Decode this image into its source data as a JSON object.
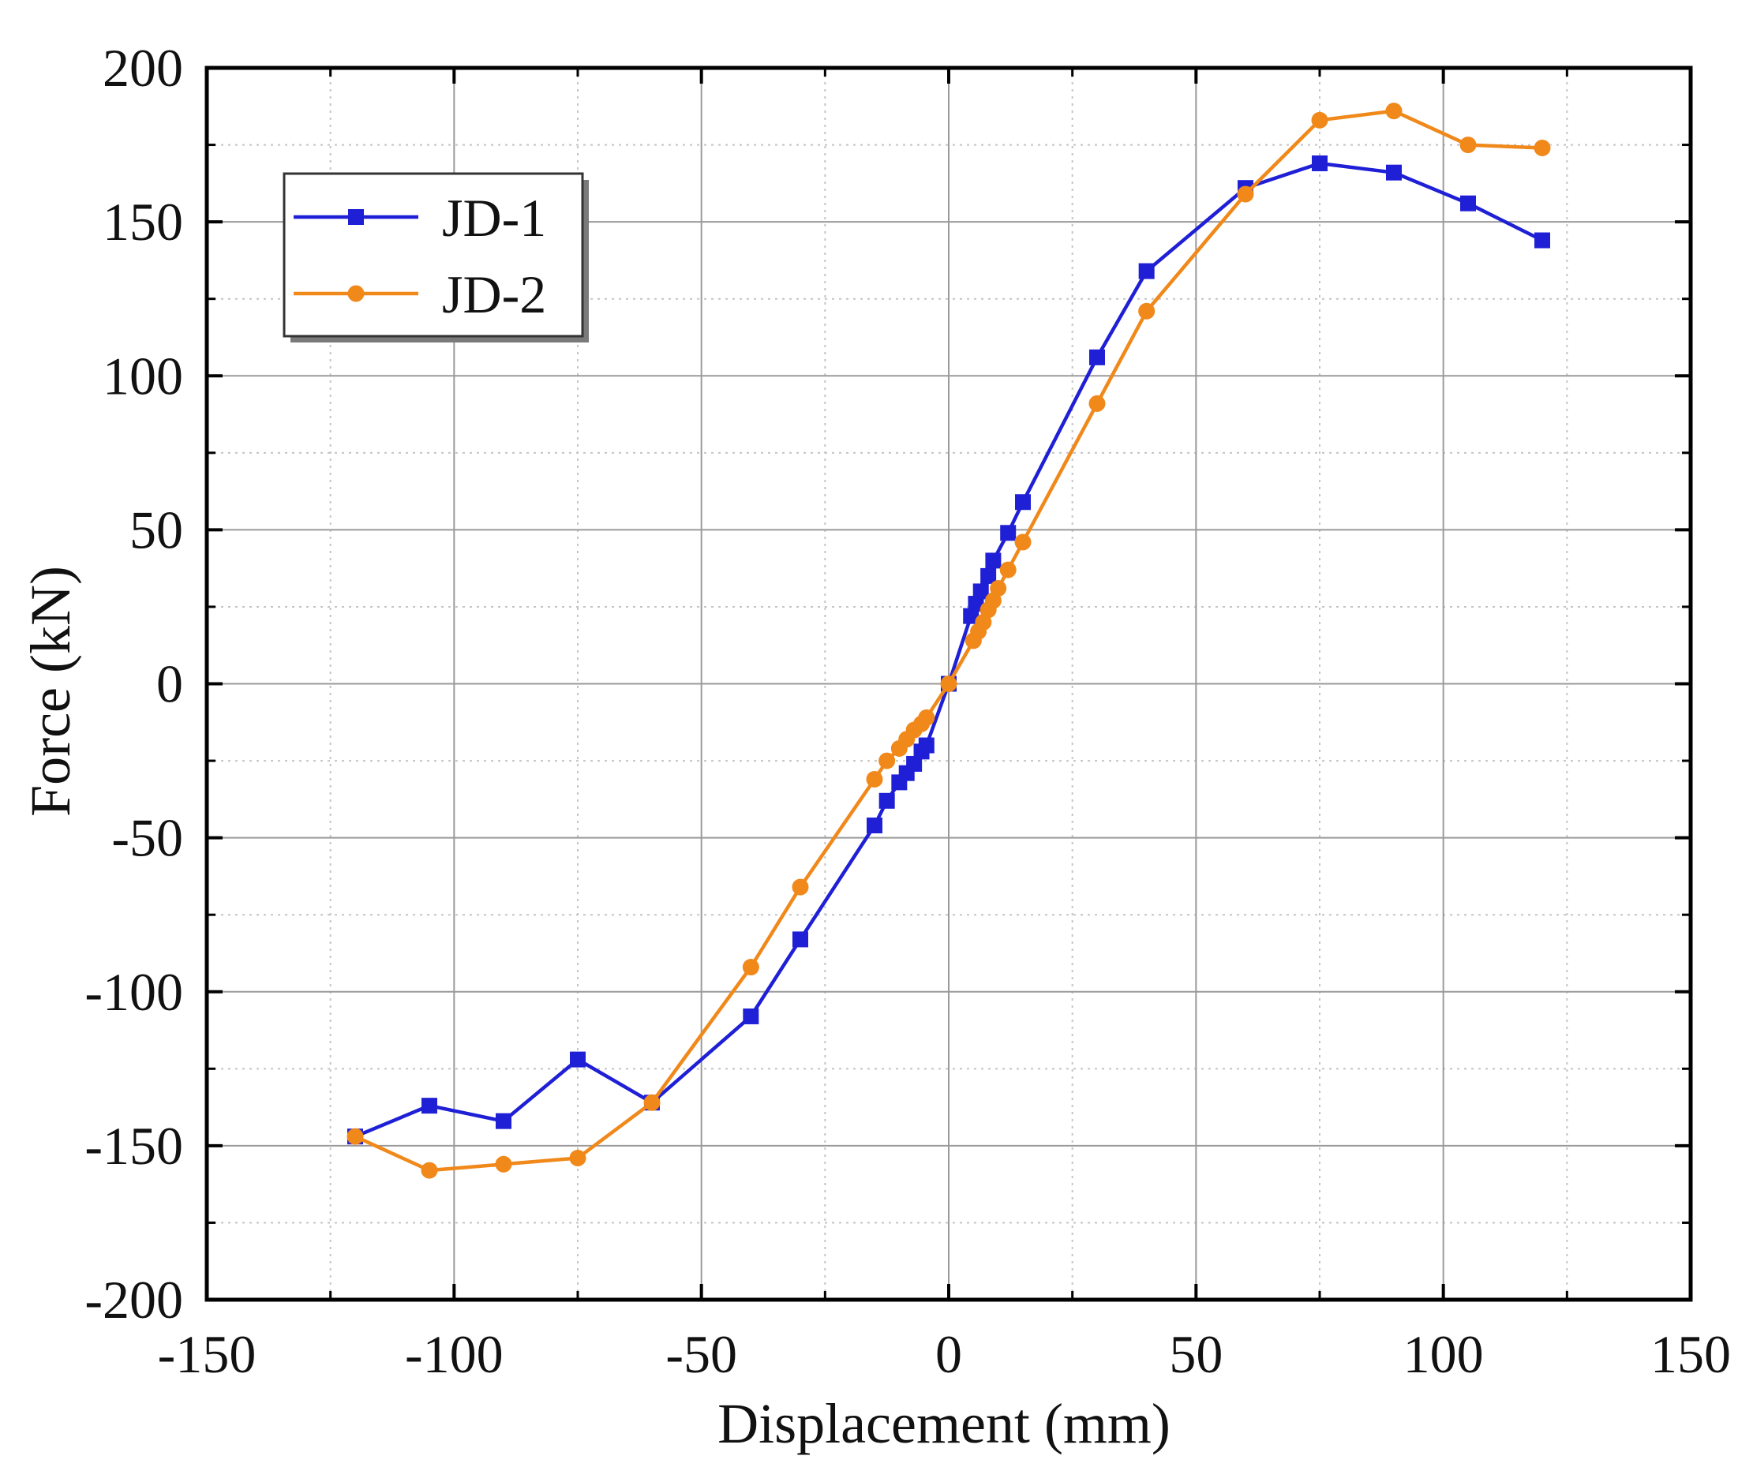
{
  "chart_data": {
    "type": "line",
    "title": "",
    "xlabel": "Displacement (mm)",
    "ylabel": "Force (kN)",
    "xlim": [
      -150,
      150
    ],
    "ylim": [
      -200,
      200
    ],
    "xticks": [
      -150,
      -100,
      -50,
      0,
      50,
      100,
      150
    ],
    "yticks": [
      -200,
      -150,
      -100,
      -50,
      0,
      50,
      100,
      150,
      200
    ],
    "xtick_labels": [
      "-150",
      "-100",
      "-50",
      "0",
      "50",
      "100",
      "150"
    ],
    "ytick_labels": [
      "-200",
      "-150",
      "-100",
      "-50",
      "0",
      "50",
      "100",
      "150",
      "200"
    ],
    "grid": true,
    "legend_position": "top-left",
    "series": [
      {
        "name": "JD-1",
        "color": "#1f1fd6",
        "marker": "square",
        "points": [
          [
            -120,
            -147
          ],
          [
            -105,
            -137
          ],
          [
            -90,
            -142
          ],
          [
            -75,
            -122
          ],
          [
            -60,
            -136
          ],
          [
            -40,
            -108
          ],
          [
            -30,
            -83
          ],
          [
            -15,
            -46
          ],
          [
            -12.5,
            -38
          ],
          [
            -10,
            -32
          ],
          [
            -8.5,
            -29
          ],
          [
            -7,
            -26
          ],
          [
            -5.5,
            -22
          ],
          [
            -4.5,
            -20
          ],
          [
            0,
            0
          ],
          [
            4.5,
            22
          ],
          [
            5.5,
            26
          ],
          [
            6.5,
            30
          ],
          [
            8,
            35
          ],
          [
            9,
            40
          ],
          [
            12,
            49
          ],
          [
            15,
            59
          ],
          [
            30,
            106
          ],
          [
            40,
            134
          ],
          [
            60,
            161
          ],
          [
            75,
            169
          ],
          [
            90,
            166
          ],
          [
            105,
            156
          ],
          [
            120,
            144
          ]
        ]
      },
      {
        "name": "JD-2",
        "color": "#f0881a",
        "marker": "circle",
        "points": [
          [
            -120,
            -147
          ],
          [
            -105,
            -158
          ],
          [
            -90,
            -156
          ],
          [
            -75,
            -154
          ],
          [
            -60,
            -136
          ],
          [
            -40,
            -92
          ],
          [
            -30,
            -66
          ],
          [
            -15,
            -31
          ],
          [
            -12.5,
            -25
          ],
          [
            -10,
            -21
          ],
          [
            -8.5,
            -18
          ],
          [
            -7,
            -15
          ],
          [
            -5.5,
            -13
          ],
          [
            -4.5,
            -11
          ],
          [
            0,
            0
          ],
          [
            5,
            14
          ],
          [
            6,
            17
          ],
          [
            7,
            20
          ],
          [
            8,
            24
          ],
          [
            9,
            27
          ],
          [
            10,
            31
          ],
          [
            12,
            37
          ],
          [
            15,
            46
          ],
          [
            30,
            91
          ],
          [
            40,
            121
          ],
          [
            60,
            159
          ],
          [
            75,
            183
          ],
          [
            90,
            186
          ],
          [
            105,
            175
          ],
          [
            120,
            174
          ]
        ]
      }
    ]
  }
}
